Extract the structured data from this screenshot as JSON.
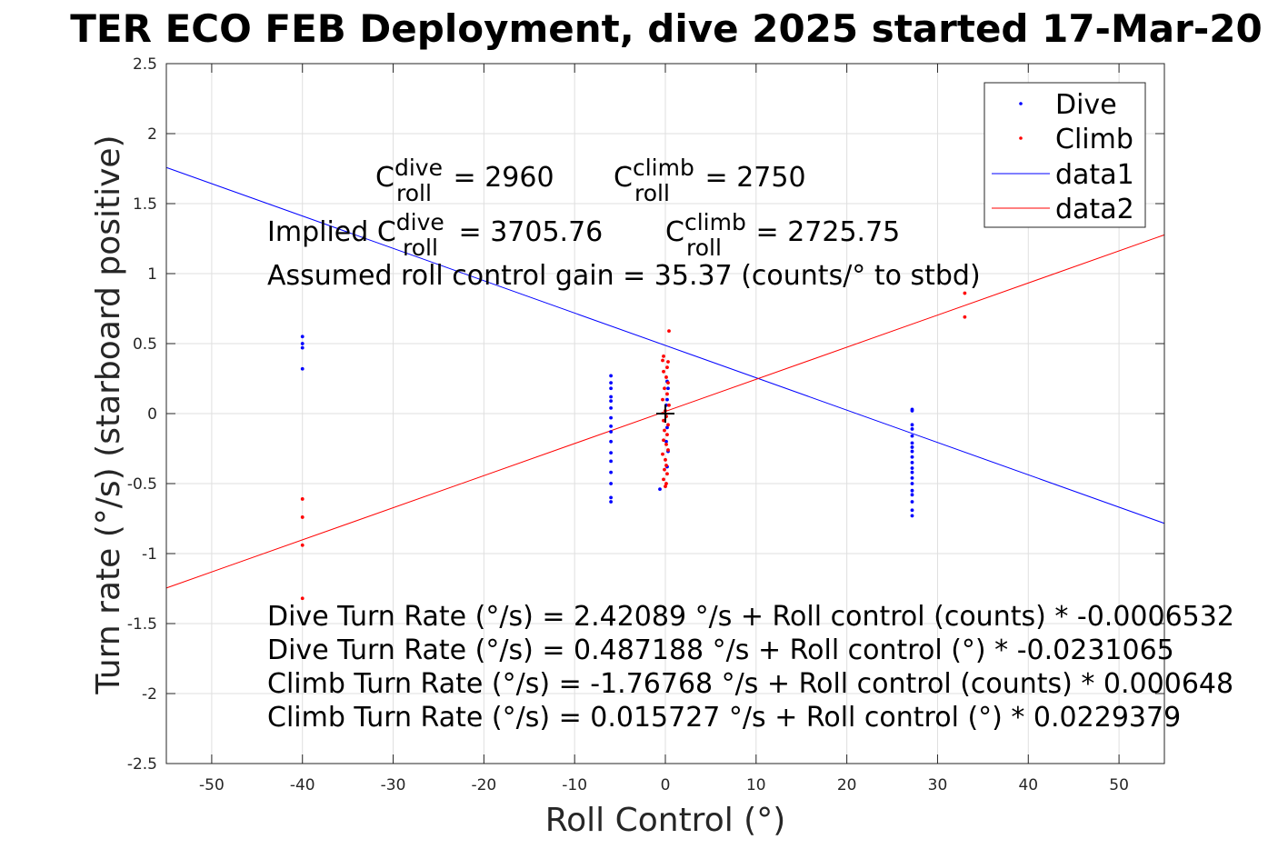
{
  "chart_data": {
    "type": "scatter",
    "title": "TER ECO FEB Deployment, dive 2025 started 17-Mar-20",
    "xlabel": "Roll Control (°)",
    "ylabel": "Turn rate (°/s) (starboard positive)",
    "xlim": [
      -55,
      55
    ],
    "ylim": [
      -2.5,
      2.5
    ],
    "xticks": [
      -50,
      -40,
      -30,
      -20,
      -10,
      0,
      10,
      20,
      30,
      40,
      50
    ],
    "yticks": [
      2.5,
      2,
      1.5,
      1,
      0.5,
      0,
      -0.5,
      -1,
      -1.5,
      -2,
      -2.5
    ],
    "grid": true,
    "legend_position": "top-right",
    "legend": [
      "Dive",
      "Climb",
      "data1",
      "data2"
    ],
    "series": [
      {
        "name": "Dive",
        "kind": "points",
        "color": "#0000ff",
        "x": [
          -40,
          -40,
          -40,
          -40,
          -6,
          -6,
          -6,
          -6,
          -6,
          -6,
          -6,
          -6,
          -6,
          -6,
          -6,
          -6,
          -6,
          -6,
          -6,
          -6,
          -0.6,
          0.2,
          0.3,
          0.2,
          0.1,
          0.2,
          0.1,
          0.3,
          0.2,
          27.2,
          27.2,
          27.2,
          27.2,
          27.2,
          27.2,
          27.2,
          27.2,
          27.2,
          27.2,
          27.2,
          27.2,
          27.2,
          27.2,
          27.2,
          27.2,
          27.2,
          27.2,
          27.2
        ],
        "y": [
          0.55,
          0.5,
          0.47,
          0.32,
          0.27,
          0.22,
          0.18,
          0.12,
          0.09,
          0.04,
          -0.03,
          -0.09,
          -0.13,
          -0.2,
          -0.28,
          -0.34,
          -0.42,
          -0.5,
          -0.6,
          -0.63,
          -0.54,
          0.23,
          0.18,
          0.1,
          0.06,
          -0.1,
          -0.2,
          -0.27,
          -0.38,
          0.03,
          0.02,
          -0.08,
          -0.11,
          -0.16,
          -0.21,
          -0.24,
          -0.27,
          -0.31,
          -0.35,
          -0.39,
          -0.42,
          -0.46,
          -0.5,
          -0.55,
          -0.58,
          -0.63,
          -0.69,
          -0.73
        ]
      },
      {
        "name": "Climb",
        "kind": "points",
        "color": "#ff0000",
        "x": [
          -40,
          -40,
          -40,
          -40,
          -0.2,
          0.3,
          0.4,
          -0.3,
          0.2,
          -0.2,
          0.1,
          0.3,
          -0.1,
          0.2,
          -0.3,
          0.4,
          0,
          0.1,
          -0.2,
          0.3,
          -0.1,
          0.2,
          -0.2,
          0.1,
          0.3,
          -0.3,
          0,
          0.1,
          -0.1,
          0.2,
          -0.2,
          0.1,
          0,
          33,
          33
        ],
        "y": [
          -0.61,
          -0.74,
          -0.94,
          -1.32,
          0.41,
          0.37,
          0.59,
          0.38,
          0.33,
          0.3,
          0.26,
          0.22,
          0.18,
          0.14,
          0.1,
          0.06,
          0.02,
          -0.02,
          -0.05,
          -0.08,
          -0.12,
          -0.15,
          -0.19,
          -0.22,
          -0.26,
          -0.29,
          -0.33,
          -0.37,
          -0.4,
          -0.43,
          -0.47,
          -0.5,
          -0.52,
          0.86,
          0.69
        ]
      },
      {
        "name": "data1",
        "kind": "line",
        "color": "#0000ff",
        "x": [
          -55,
          55
        ],
        "y": [
          1.758,
          -0.784
        ]
      },
      {
        "name": "data2",
        "kind": "line",
        "color": "#ff0000",
        "x": [
          -55,
          55
        ],
        "y": [
          -1.246,
          1.277
        ]
      }
    ],
    "annotations": {
      "c_dive_label": "C",
      "c_dive_sup": "dive",
      "c_dive_sub": "roll",
      "c_dive_value": " = 2960",
      "c_climb_label": "C",
      "c_climb_sup": "climb",
      "c_climb_sub": "roll",
      "c_climb_value": " = 2750",
      "implied_prefix": "Implied C",
      "implied_dive_sup": "dive",
      "implied_dive_sub": "roll",
      "implied_dive_value": " = 3705.76",
      "implied_climb_label": "C",
      "implied_climb_sup": "climb",
      "implied_climb_sub": "roll",
      "implied_climb_value": " = 2725.75",
      "gain": "Assumed roll control gain = 35.37 (counts/° to stbd)",
      "eq1": "Dive Turn Rate (°/s) = 2.42089 °/s + Roll control (counts) * -0.0006532",
      "eq2": "Dive Turn Rate (°/s) = 0.487188 °/s + Roll control (°) * -0.0231065",
      "eq3": "Climb Turn Rate (°/s) = -1.76768 °/s + Roll control (counts) * 0.000648",
      "eq4": "Climb Turn Rate (°/s) = 0.015727 °/s + Roll control (°) * 0.0229379"
    }
  }
}
